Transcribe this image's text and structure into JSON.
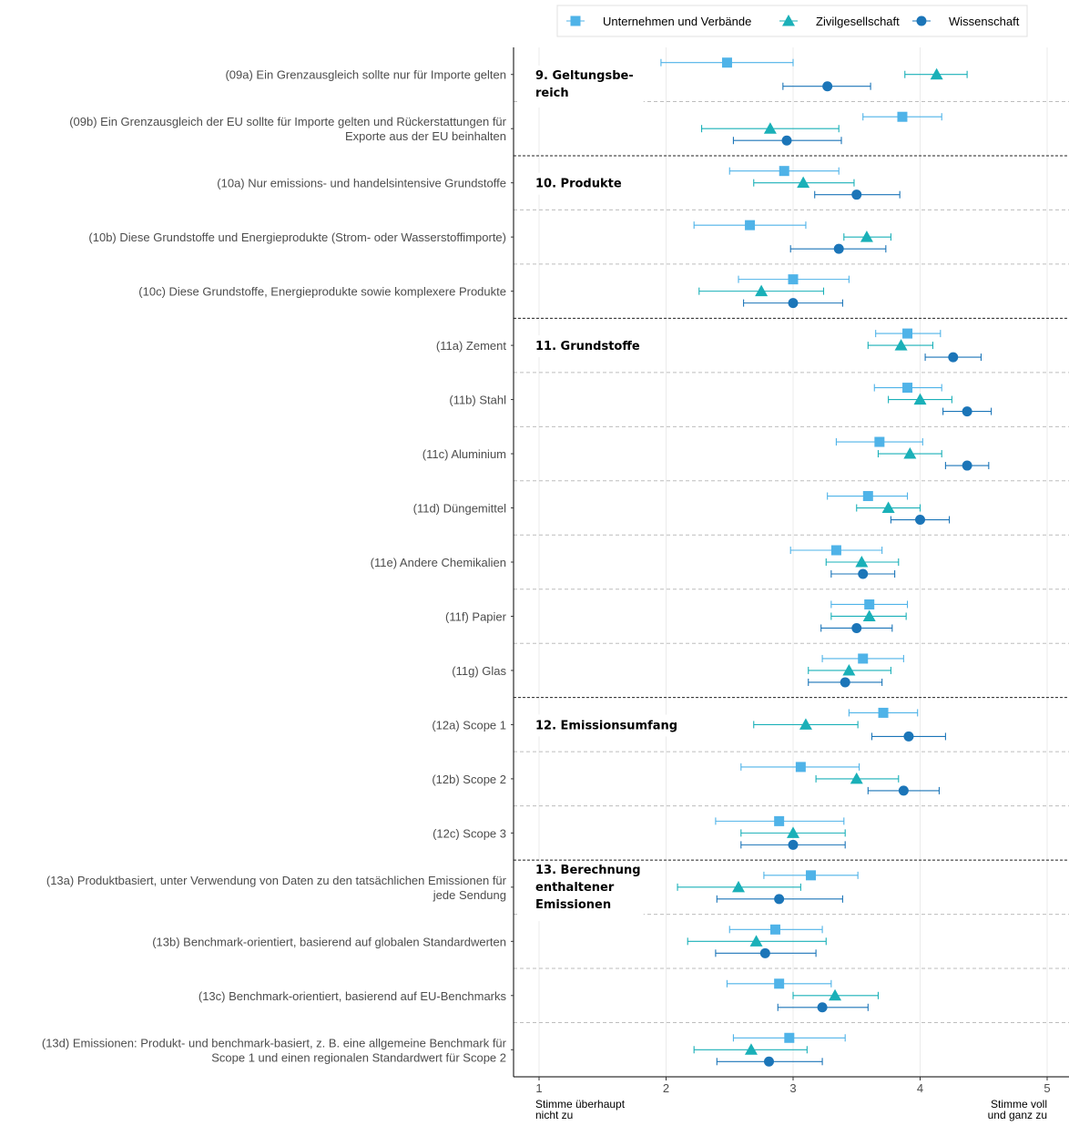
{
  "chart_data": {
    "type": "scatter",
    "subtype": "dot-with-error-bars",
    "orientation": "horizontal",
    "xlim": [
      0.8,
      5.2
    ],
    "x_ticks": [
      1,
      2,
      3,
      4,
      5
    ],
    "x_tick_labels": [
      "1",
      "2",
      "3",
      "4",
      "5"
    ],
    "x_end_labels": {
      "left": [
        "Stimme überhaupt",
        "nicht zu"
      ],
      "right": [
        "Stimme voll",
        "und ganz zu"
      ]
    },
    "grid": "vertical",
    "legend_position": "top-right",
    "series": [
      {
        "name": "Unternehmen und Verbände",
        "color": "#4fb3e8",
        "marker": "square"
      },
      {
        "name": "Zivilgesellschaft",
        "color": "#1ab0b8",
        "marker": "triangle"
      },
      {
        "name": "Wissenschaft",
        "color": "#1b75b8",
        "marker": "circle"
      }
    ],
    "sections": [
      {
        "title": [
          "9. Geltungsbe-",
          "reich"
        ],
        "items": [
          0,
          1
        ]
      },
      {
        "title": [
          "10. Produkte"
        ],
        "items": [
          2,
          3,
          4
        ]
      },
      {
        "title": [
          "11. Grundstoffe"
        ],
        "items": [
          5,
          6,
          7,
          8,
          9,
          10,
          11
        ]
      },
      {
        "title": [
          "12. Emissionsumfang"
        ],
        "items": [
          12,
          13,
          14
        ]
      },
      {
        "title": [
          "13. Berechnung",
          "enthaltener",
          "Emissionen"
        ],
        "items": [
          15,
          16,
          17,
          18
        ]
      }
    ],
    "items": [
      {
        "label": [
          "(09a) Ein Grenzausgleich sollte nur für Importe gelten"
        ],
        "values": [
          [
            2.48,
            1.96,
            3.0
          ],
          [
            4.13,
            3.88,
            4.37
          ],
          [
            3.27,
            2.92,
            3.61
          ]
        ]
      },
      {
        "label": [
          "(09b) Ein Grenzausgleich der EU sollte für Importe gelten und Rückerstattungen für",
          "Exporte aus der EU beinhalten"
        ],
        "values": [
          [
            3.86,
            3.55,
            4.17
          ],
          [
            2.82,
            2.28,
            3.36
          ],
          [
            2.95,
            2.53,
            3.38
          ]
        ]
      },
      {
        "label": [
          "(10a) Nur emissions- und handelsintensive Grundstoffe"
        ],
        "values": [
          [
            2.93,
            2.5,
            3.36
          ],
          [
            3.08,
            2.69,
            3.48
          ],
          [
            3.5,
            3.17,
            3.84
          ]
        ]
      },
      {
        "label": [
          "(10b) Diese Grundstoffe und Energieprodukte (Strom- oder Wasserstoffimporte)"
        ],
        "values": [
          [
            2.66,
            2.22,
            3.1
          ],
          [
            3.58,
            3.4,
            3.77
          ],
          [
            3.36,
            2.98,
            3.73
          ]
        ]
      },
      {
        "label": [
          "(10c) Diese Grundstoffe, Energieprodukte sowie komplexere Produkte"
        ],
        "values": [
          [
            3.0,
            2.57,
            3.44
          ],
          [
            2.75,
            2.26,
            3.24
          ],
          [
            3.0,
            2.61,
            3.39
          ]
        ]
      },
      {
        "label": [
          "(11a) Zement"
        ],
        "values": [
          [
            3.9,
            3.65,
            4.16
          ],
          [
            3.85,
            3.59,
            4.1
          ],
          [
            4.26,
            4.04,
            4.48
          ]
        ]
      },
      {
        "label": [
          "(11b) Stahl"
        ],
        "values": [
          [
            3.9,
            3.64,
            4.17
          ],
          [
            4.0,
            3.75,
            4.25
          ],
          [
            4.37,
            4.18,
            4.56
          ]
        ]
      },
      {
        "label": [
          "(11c) Aluminium"
        ],
        "values": [
          [
            3.68,
            3.34,
            4.02
          ],
          [
            3.92,
            3.67,
            4.17
          ],
          [
            4.37,
            4.2,
            4.54
          ]
        ]
      },
      {
        "label": [
          "(11d) Düngemittel"
        ],
        "values": [
          [
            3.59,
            3.27,
            3.9
          ],
          [
            3.75,
            3.5,
            4.0
          ],
          [
            4.0,
            3.77,
            4.23
          ]
        ]
      },
      {
        "label": [
          "(11e) Andere Chemikalien"
        ],
        "values": [
          [
            3.34,
            2.98,
            3.7
          ],
          [
            3.54,
            3.26,
            3.83
          ],
          [
            3.55,
            3.3,
            3.8
          ]
        ]
      },
      {
        "label": [
          "(11f) Papier"
        ],
        "values": [
          [
            3.6,
            3.3,
            3.9
          ],
          [
            3.6,
            3.3,
            3.89
          ],
          [
            3.5,
            3.22,
            3.78
          ]
        ]
      },
      {
        "label": [
          "(11g) Glas"
        ],
        "values": [
          [
            3.55,
            3.23,
            3.87
          ],
          [
            3.44,
            3.12,
            3.77
          ],
          [
            3.41,
            3.12,
            3.7
          ]
        ]
      },
      {
        "label": [
          "(12a) Scope 1"
        ],
        "values": [
          [
            3.71,
            3.44,
            3.98
          ],
          [
            3.1,
            2.69,
            3.51
          ],
          [
            3.91,
            3.62,
            4.2
          ]
        ]
      },
      {
        "label": [
          "(12b) Scope 2"
        ],
        "values": [
          [
            3.06,
            2.59,
            3.52
          ],
          [
            3.5,
            3.18,
            3.83
          ],
          [
            3.87,
            3.59,
            4.15
          ]
        ]
      },
      {
        "label": [
          "(12c) Scope 3"
        ],
        "values": [
          [
            2.89,
            2.39,
            3.4
          ],
          [
            3.0,
            2.59,
            3.41
          ],
          [
            3.0,
            2.59,
            3.41
          ]
        ]
      },
      {
        "label": [
          "(13a) Produktbasiert, unter Verwendung von Daten zu den tatsächlichen Emissionen für",
          "jede Sendung"
        ],
        "values": [
          [
            3.14,
            2.77,
            3.51
          ],
          [
            2.57,
            2.09,
            3.06
          ],
          [
            2.89,
            2.4,
            3.39
          ]
        ]
      },
      {
        "label": [
          "(13b) Benchmark-orientiert, basierend auf globalen Standardwerten"
        ],
        "values": [
          [
            2.86,
            2.5,
            3.23
          ],
          [
            2.71,
            2.17,
            3.26
          ],
          [
            2.78,
            2.39,
            3.18
          ]
        ]
      },
      {
        "label": [
          "(13c) Benchmark-orientiert, basierend auf EU-Benchmarks"
        ],
        "values": [
          [
            2.89,
            2.48,
            3.3
          ],
          [
            3.33,
            3.0,
            3.67
          ],
          [
            3.23,
            2.88,
            3.59
          ]
        ]
      },
      {
        "label": [
          "(13d) Emissionen: Produkt- und benchmark-basiert, z. B. eine allgemeine Benchmark für",
          "Scope 1 und einen regionalen Standardwert für Scope 2"
        ],
        "values": [
          [
            2.97,
            2.53,
            3.41
          ],
          [
            2.67,
            2.22,
            3.11
          ],
          [
            2.81,
            2.4,
            3.23
          ]
        ]
      }
    ]
  }
}
